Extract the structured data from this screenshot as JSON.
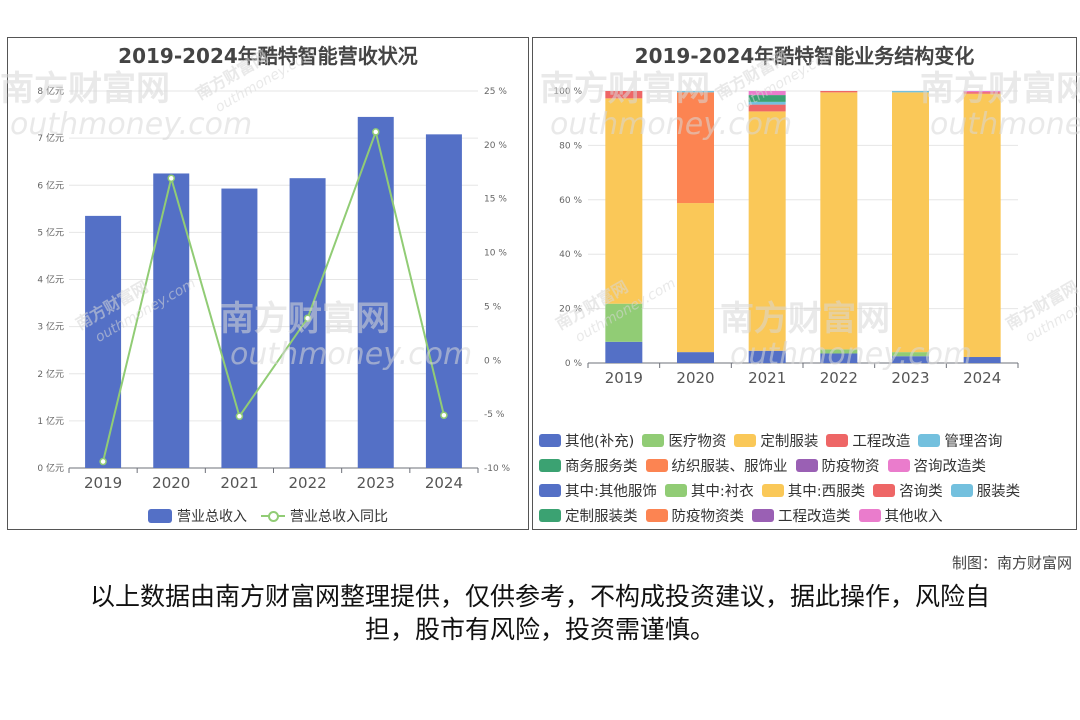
{
  "left_chart": {
    "title": "2019-2024年酷特智能营收状况",
    "legend": [
      {
        "label": "营业总收入",
        "color": "#5470c6",
        "kind": "bar"
      },
      {
        "label": "营业总收入同比",
        "color": "#91cc75",
        "kind": "line"
      }
    ]
  },
  "right_chart": {
    "title": "2019-2024年酷特智能业务结构变化",
    "legend": [
      {
        "label": "其他(补充)",
        "color": "#5470c6"
      },
      {
        "label": "医疗物资",
        "color": "#91cc75"
      },
      {
        "label": "定制服装",
        "color": "#fac858"
      },
      {
        "label": "工程改造",
        "color": "#ee6666"
      },
      {
        "label": "管理咨询",
        "color": "#73c0de"
      },
      {
        "label": "商务服务类",
        "color": "#3ba272"
      },
      {
        "label": "纺织服装、服饰业",
        "color": "#fc8452"
      },
      {
        "label": "防疫物资",
        "color": "#9a60b4"
      },
      {
        "label": "咨询改造类",
        "color": "#ea7ccc"
      },
      {
        "label": "其中:其他服饰",
        "color": "#5470c6"
      },
      {
        "label": "其中:衬衣",
        "color": "#91cc75"
      },
      {
        "label": "其中:西服类",
        "color": "#fac858"
      },
      {
        "label": "咨询类",
        "color": "#ee6666"
      },
      {
        "label": "服装类",
        "color": "#73c0de"
      },
      {
        "label": "定制服装类",
        "color": "#3ba272"
      },
      {
        "label": "防疫物资类",
        "color": "#fc8452"
      },
      {
        "label": "工程改造类",
        "color": "#9a60b4"
      },
      {
        "label": "其他收入",
        "color": "#ea7ccc"
      }
    ]
  },
  "credit": "制图：南方财富网",
  "disclaimer": "以上数据由南方财富网整理提供，仅供参考，不构成投资建议，据此操作，风险自担，股市有风险，投资需谨慎。",
  "watermark": {
    "cn": "南方财富网",
    "en": "outhmoney.com"
  },
  "chart_data": [
    {
      "type": "bar",
      "title": "2019-2024年酷特智能营收状况",
      "categories": [
        "2019",
        "2020",
        "2021",
        "2022",
        "2023",
        "2024"
      ],
      "y_left": {
        "ticks": [
          "0 亿元",
          "1 亿元",
          "2 亿元",
          "3 亿元",
          "4 亿元",
          "5 亿元",
          "6 亿元",
          "7 亿元",
          "8 亿元"
        ],
        "ylim": [
          0,
          8
        ]
      },
      "y_right": {
        "ticks": [
          "-10 %",
          "-5 %",
          "0 %",
          "5 %",
          "10 %",
          "15 %",
          "20 %",
          "25 %"
        ],
        "ylim": [
          -10,
          25
        ]
      },
      "series": [
        {
          "name": "营业总收入",
          "type": "bar",
          "axis": "left",
          "color": "#5470c6",
          "values": [
            5.35,
            6.25,
            5.93,
            6.15,
            7.45,
            7.08
          ]
        },
        {
          "name": "营业总收入同比",
          "type": "line",
          "axis": "right",
          "color": "#91cc75",
          "values": [
            -9.4,
            16.9,
            -5.2,
            3.9,
            21.2,
            -5.1
          ]
        }
      ],
      "grid": true,
      "legend_position": "bottom"
    },
    {
      "type": "bar",
      "stacked": true,
      "title": "2019-2024年酷特智能业务结构变化",
      "categories": [
        "2019",
        "2020",
        "2021",
        "2022",
        "2023",
        "2024"
      ],
      "y_axis": {
        "ticks": [
          "0 %",
          "20 %",
          "40 %",
          "60 %",
          "80 %",
          "100 %"
        ],
        "ylim": [
          0,
          100
        ]
      },
      "series": [
        {
          "name": "其他(补充)",
          "color": "#5470c6",
          "values": [
            7.8,
            4.0,
            4.5,
            3.5,
            2.5,
            2.2
          ]
        },
        {
          "name": "医疗物资",
          "color": "#91cc75",
          "values": [
            14.0,
            0,
            0,
            0,
            0,
            0
          ]
        },
        {
          "name": "定制服装",
          "color": "#fac858",
          "values": [
            75.5,
            54.8,
            0,
            0,
            0,
            0
          ]
        },
        {
          "name": "工程改造",
          "color": "#ee6666",
          "values": [
            2.7,
            0,
            0,
            0,
            0,
            0
          ]
        },
        {
          "name": "纺织服装、服饰业",
          "color": "#fc8452",
          "values": [
            0,
            40.7,
            0,
            0,
            0,
            0
          ]
        },
        {
          "name": "管理咨询",
          "color": "#73c0de",
          "values": [
            0,
            0.5,
            0,
            0,
            0,
            0
          ]
        },
        {
          "name": "其中:衬衣",
          "color": "#91cc75",
          "values": [
            0,
            0,
            0,
            1.5,
            1.5,
            0
          ]
        },
        {
          "name": "其中:西服类",
          "color": "#fac858",
          "values": [
            0,
            0,
            88.0,
            94.5,
            95.5,
            96.8
          ]
        },
        {
          "name": "咨询改造类",
          "color": "#ee6666",
          "values": [
            0,
            0,
            2.5,
            0.5,
            0,
            0.6
          ]
        },
        {
          "name": "服装类",
          "color": "#73c0de",
          "values": [
            0,
            0,
            1.0,
            0,
            0.5,
            0
          ]
        },
        {
          "name": "定制服装类",
          "color": "#3ba272",
          "values": [
            0,
            0,
            2.5,
            0,
            0,
            0
          ]
        },
        {
          "name": "其他收入",
          "color": "#ea7ccc",
          "values": [
            0,
            0,
            1.5,
            0,
            0,
            0.4
          ]
        }
      ],
      "grid": true,
      "legend_position": "bottom"
    }
  ]
}
